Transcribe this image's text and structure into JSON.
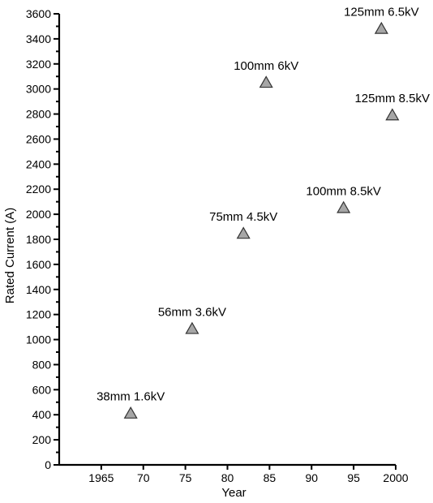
{
  "chart_data": {
    "type": "scatter",
    "title": "",
    "xlabel": "Year",
    "ylabel": "Rated Current (A)",
    "xlim": [
      1960,
      2000
    ],
    "ylim": [
      0,
      3600
    ],
    "x_ticks": [
      {
        "value": 1965,
        "label": "1965"
      },
      {
        "value": 1970,
        "label": "70"
      },
      {
        "value": 1975,
        "label": "75"
      },
      {
        "value": 1980,
        "label": "80"
      },
      {
        "value": 1985,
        "label": "85"
      },
      {
        "value": 1990,
        "label": "90"
      },
      {
        "value": 1995,
        "label": "95"
      },
      {
        "value": 2000,
        "label": "2000"
      }
    ],
    "y_major_ticks": [
      0,
      200,
      400,
      600,
      800,
      1000,
      1200,
      1400,
      1600,
      1800,
      2000,
      2200,
      2400,
      2600,
      2800,
      3000,
      3200,
      3400,
      3600
    ],
    "y_minor_step": 100,
    "grid": false,
    "marker": "triangle",
    "marker_color": "#a6a6a6",
    "points": [
      {
        "x": 1968.5,
        "y": 410,
        "label": "38mm 1.6kV"
      },
      {
        "x": 1975.8,
        "y": 1085,
        "label": "56mm 3.6kV"
      },
      {
        "x": 1981.9,
        "y": 1845,
        "label": "75mm 4.5kV"
      },
      {
        "x": 1984.6,
        "y": 3050,
        "label": "100mm 6kV"
      },
      {
        "x": 1993.8,
        "y": 2050,
        "label": "100mm 8.5kV"
      },
      {
        "x": 1998.3,
        "y": 3480,
        "label": "125mm 6.5kV"
      },
      {
        "x": 1999.6,
        "y": 2790,
        "label": "125mm 8.5kV"
      }
    ]
  }
}
